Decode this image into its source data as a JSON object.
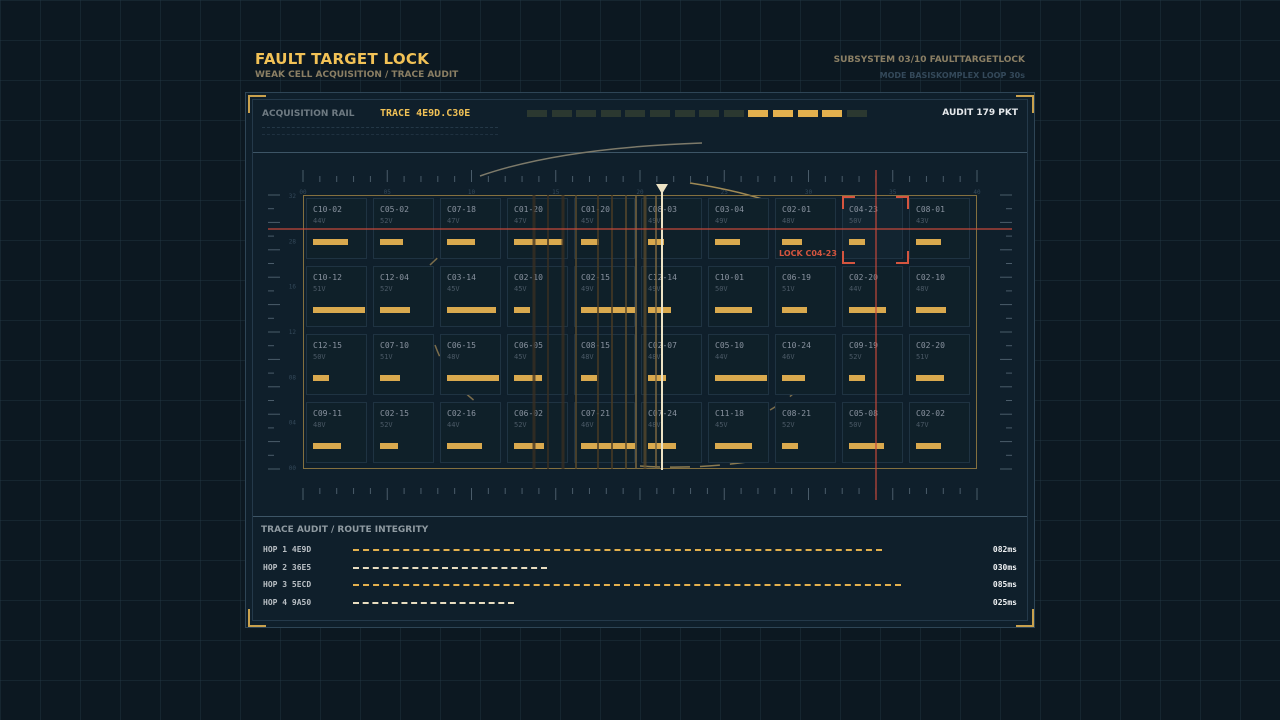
{
  "header": {
    "title": "FAULT TARGET LOCK",
    "subtitle": "WEAK CELL ACQUISITION / TRACE AUDIT",
    "subsystem": "SUBSYSTEM 03/10  FAULTTARGETLOCK",
    "mode": "MODE BASISKOMPLEX  LOOP 30s"
  },
  "rail": {
    "label": "ACQUISITION RAIL",
    "trace": "TRACE 4E9D.C30E",
    "audit": "AUDIT 179 PKT",
    "segments_total": 14,
    "segments_active": [
      9,
      10,
      11,
      12
    ]
  },
  "scale": {
    "x_ticks": [
      "00",
      "05",
      "10",
      "15",
      "20",
      "25",
      "30",
      "35",
      "40"
    ],
    "y_ticks": [
      "32",
      "28",
      "16",
      "12",
      "08",
      "04",
      "00"
    ]
  },
  "cells": [
    {
      "id": "C10-02",
      "v": "44V",
      "level": 0.6
    },
    {
      "id": "C05-02",
      "v": "52V",
      "level": 0.35
    },
    {
      "id": "C07-18",
      "v": "47V",
      "level": 0.45
    },
    {
      "id": "C01-20",
      "v": "47V",
      "level": 0.9
    },
    {
      "id": "C01-20",
      "v": "45V",
      "level": 0.25
    },
    {
      "id": "C08-03",
      "v": "49V",
      "level": 0.2
    },
    {
      "id": "C03-04",
      "v": "49V",
      "level": 0.4
    },
    {
      "id": "C02-01",
      "v": "48V",
      "level": 0.3
    },
    {
      "id": "C04-23",
      "v": "50V",
      "level": 0.2
    },
    {
      "id": "C08-01",
      "v": "43V",
      "level": 0.4
    },
    {
      "id": "C10-12",
      "v": "51V",
      "level": 0.95
    },
    {
      "id": "C12-04",
      "v": "52V",
      "level": 0.5
    },
    {
      "id": "C03-14",
      "v": "45V",
      "level": 0.9
    },
    {
      "id": "C02-10",
      "v": "45V",
      "level": 0.2
    },
    {
      "id": "C02-15",
      "v": "49V",
      "level": 1.0
    },
    {
      "id": "C12-14",
      "v": "49V",
      "level": 0.35
    },
    {
      "id": "C10-01",
      "v": "50V",
      "level": 0.65
    },
    {
      "id": "C06-19",
      "v": "51V",
      "level": 0.4
    },
    {
      "id": "C02-20",
      "v": "44V",
      "level": 0.65
    },
    {
      "id": "C02-10",
      "v": "48V",
      "level": 0.5
    },
    {
      "id": "C12-15",
      "v": "50V",
      "level": 0.2
    },
    {
      "id": "C07-10",
      "v": "51V",
      "level": 0.3
    },
    {
      "id": "C06-15",
      "v": "48V",
      "level": 0.95
    },
    {
      "id": "C06-05",
      "v": "45V",
      "level": 0.45
    },
    {
      "id": "C08-15",
      "v": "48V",
      "level": 0.2
    },
    {
      "id": "C02-07",
      "v": "48V",
      "level": 0.25
    },
    {
      "id": "C05-10",
      "v": "44V",
      "level": 0.95
    },
    {
      "id": "C10-24",
      "v": "46V",
      "level": 0.35
    },
    {
      "id": "C09-19",
      "v": "52V",
      "level": 0.2
    },
    {
      "id": "C02-20",
      "v": "51V",
      "level": 0.45
    },
    {
      "id": "C09-11",
      "v": "48V",
      "level": 0.45
    },
    {
      "id": "C02-15",
      "v": "52V",
      "level": 0.25
    },
    {
      "id": "C02-16",
      "v": "44V",
      "level": 0.6
    },
    {
      "id": "C06-02",
      "v": "52V",
      "level": 0.5
    },
    {
      "id": "C07-21",
      "v": "46V",
      "level": 1.0
    },
    {
      "id": "C07-24",
      "v": "48V",
      "level": 0.45
    },
    {
      "id": "C11-18",
      "v": "45V",
      "level": 0.65
    },
    {
      "id": "C08-21",
      "v": "52V",
      "level": 0.2
    },
    {
      "id": "C05-08",
      "v": "50V",
      "level": 0.6
    },
    {
      "id": "C02-02",
      "v": "47V",
      "level": 0.4
    }
  ],
  "lock": {
    "label": "LOCK C04-23",
    "cell_index": 8
  },
  "audit": {
    "title": "TRACE AUDIT / ROUTE INTEGRITY",
    "hops": [
      {
        "label": "HOP 1 4E9D",
        "ms": "082ms",
        "value": 82
      },
      {
        "label": "HOP 2 36E5",
        "ms": "030ms",
        "value": 30
      },
      {
        "label": "HOP 3 5ECD",
        "ms": "085ms",
        "value": 85
      },
      {
        "label": "HOP 4 9A50",
        "ms": "025ms",
        "value": 25
      }
    ]
  },
  "colors": {
    "accent": "#f2c256",
    "bar": "#d9a94e",
    "lock": "#d5553f",
    "frame": "#2e4556"
  }
}
